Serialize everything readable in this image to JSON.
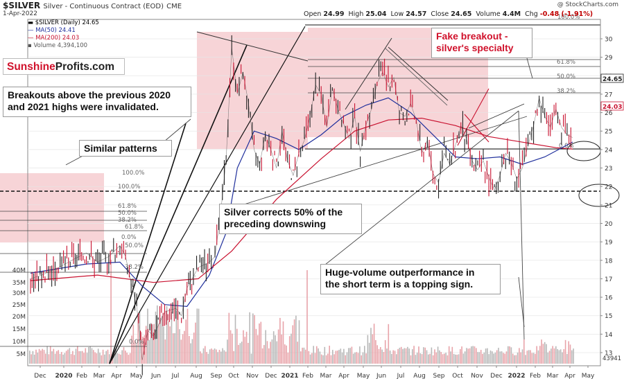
{
  "header": {
    "symbol": "$SILVER",
    "contract": "Silver - Continuous Contract (EOD)",
    "exchange": "CME",
    "date": "1-Apr-2022",
    "open_label": "Open",
    "open": "24.99",
    "high_label": "High",
    "high": "25.04",
    "low_label": "Low",
    "low": "24.57",
    "close_label": "Close",
    "close": "24.65",
    "volume_label": "Volume",
    "volume": "4.4M",
    "chg_label": "Chg",
    "chg": "-0.48 (-1.91%)",
    "credit": "@ StockCharts.com"
  },
  "legend": {
    "price": "$SILVER (Daily) 24.65",
    "ma50": "MA(50) 24.41",
    "ma200": "MA(200) 24.03",
    "volume": "Volume 4,394,100"
  },
  "logo": {
    "part1": "Sunshine",
    "part2": "Profits.com"
  },
  "annotations": {
    "fake_breakout_1": "Fake breakout -",
    "fake_breakout_2": "silver's specialty",
    "breakouts_1": "Breakouts above the previous 2020",
    "breakouts_2": "and 2021 highs were invalidated.",
    "similar": "Similar patterns",
    "corrects_1": "Silver corrects 50% of the",
    "corrects_2": "preceding downswing",
    "huge_1": "Huge-volume outperformance in",
    "huge_2": "the short term is a topping sign."
  },
  "colors": {
    "up": "#202020",
    "down": "#c8102e",
    "ma50": "#1f2f9c",
    "ma200": "#c8102e",
    "zone": "#f4c6c9",
    "volume_up": "#b8b8b8",
    "volume_down": "#e8a3a9",
    "accent_red": "#d0112b"
  },
  "chart_data": {
    "type": "line",
    "price_axis": {
      "ticks": [
        13,
        14,
        15,
        16,
        17,
        18,
        19,
        20,
        21,
        22,
        23,
        24,
        25,
        26,
        27,
        28,
        29,
        30
      ],
      "range": [
        12.4,
        30.6
      ]
    },
    "volume_axis": {
      "ticks": [
        "5M",
        "10M",
        "15M",
        "20M",
        "25M",
        "30M",
        "35M",
        "40M"
      ]
    },
    "x_ticks": [
      "Dec",
      "2020",
      "Feb",
      "Mar",
      "Apr",
      "May",
      "Jun",
      "Jul",
      "Aug",
      "Sep",
      "Oct",
      "Nov",
      "Dec",
      "2021",
      "Feb",
      "Mar",
      "Apr",
      "May",
      "Jun",
      "Jul",
      "Aug",
      "Sep",
      "Oct",
      "Nov",
      "Dec",
      "2022",
      "Feb",
      "Mar",
      "Apr",
      "May"
    ],
    "x_ticks_bold": [
      "2020",
      "2021",
      "2022"
    ],
    "price_labels": [
      {
        "text": "24.65",
        "color": "#202020"
      },
      {
        "text": "24.03",
        "color": "#c8102e"
      }
    ],
    "volume_last_label": "43941",
    "price_path": [
      {
        "t": 0,
        "y": 17.0
      },
      {
        "t": 2,
        "y": 17.2
      },
      {
        "t": 5,
        "y": 17.6
      },
      {
        "t": 8,
        "y": 18.1
      },
      {
        "t": 10,
        "y": 18.4
      },
      {
        "t": 12,
        "y": 17.9
      },
      {
        "t": 14,
        "y": 18.2
      },
      {
        "t": 16,
        "y": 18.8
      },
      {
        "t": 17,
        "y": 18.2
      },
      {
        "t": 18,
        "y": 16.8
      },
      {
        "t": 19,
        "y": 15.5
      },
      {
        "t": 20,
        "y": 12.6
      },
      {
        "t": 21,
        "y": 14.2
      },
      {
        "t": 22,
        "y": 13.9
      },
      {
        "t": 24,
        "y": 15.2
      },
      {
        "t": 26,
        "y": 15.4
      },
      {
        "t": 27,
        "y": 15.0
      },
      {
        "t": 28,
        "y": 16.5
      },
      {
        "t": 30,
        "y": 17.6
      },
      {
        "t": 32,
        "y": 17.9
      },
      {
        "t": 33,
        "y": 18.2
      },
      {
        "t": 34,
        "y": 20.5
      },
      {
        "t": 35,
        "y": 23.5
      },
      {
        "t": 36,
        "y": 29.5
      },
      {
        "t": 37,
        "y": 27.0
      },
      {
        "t": 38,
        "y": 28.2
      },
      {
        "t": 39,
        "y": 26.5
      },
      {
        "t": 40,
        "y": 24.0
      },
      {
        "t": 41,
        "y": 23.2
      },
      {
        "t": 42,
        "y": 24.8
      },
      {
        "t": 43,
        "y": 24.0
      },
      {
        "t": 44,
        "y": 23.0
      },
      {
        "t": 45,
        "y": 25.0
      },
      {
        "t": 46,
        "y": 23.4
      },
      {
        "t": 47,
        "y": 22.6
      },
      {
        "t": 48,
        "y": 23.8
      },
      {
        "t": 49,
        "y": 24.5
      },
      {
        "t": 50,
        "y": 25.8
      },
      {
        "t": 51,
        "y": 27.5
      },
      {
        "t": 52,
        "y": 27.0
      },
      {
        "t": 53,
        "y": 25.2
      },
      {
        "t": 54,
        "y": 27.3
      },
      {
        "t": 55,
        "y": 26.2
      },
      {
        "t": 56,
        "y": 25.4
      },
      {
        "t": 57,
        "y": 24.6
      },
      {
        "t": 58,
        "y": 25.8
      },
      {
        "t": 59,
        "y": 23.9
      },
      {
        "t": 60,
        "y": 25.3
      },
      {
        "t": 61,
        "y": 26.2
      },
      {
        "t": 62,
        "y": 27.6
      },
      {
        "t": 63,
        "y": 28.2
      },
      {
        "t": 64,
        "y": 27.4
      },
      {
        "t": 65,
        "y": 27.9
      },
      {
        "t": 66,
        "y": 26.0
      },
      {
        "t": 67,
        "y": 25.8
      },
      {
        "t": 68,
        "y": 26.5
      },
      {
        "t": 69,
        "y": 25.6
      },
      {
        "t": 70,
        "y": 23.8
      },
      {
        "t": 71,
        "y": 24.5
      },
      {
        "t": 72,
        "y": 22.7
      },
      {
        "t": 73,
        "y": 22.2
      },
      {
        "t": 74,
        "y": 23.8
      },
      {
        "t": 75,
        "y": 23.2
      },
      {
        "t": 76,
        "y": 24.2
      },
      {
        "t": 77,
        "y": 25.3
      },
      {
        "t": 78,
        "y": 24.6
      },
      {
        "t": 79,
        "y": 23.4
      },
      {
        "t": 80,
        "y": 22.9
      },
      {
        "t": 81,
        "y": 23.4
      },
      {
        "t": 82,
        "y": 22.5
      },
      {
        "t": 83,
        "y": 21.8
      },
      {
        "t": 84,
        "y": 22.6
      },
      {
        "t": 85,
        "y": 23.8
      },
      {
        "t": 86,
        "y": 23.3
      },
      {
        "t": 87,
        "y": 22.4
      },
      {
        "t": 88,
        "y": 23.0
      },
      {
        "t": 89,
        "y": 24.2
      },
      {
        "t": 90,
        "y": 25.3
      },
      {
        "t": 91,
        "y": 26.8
      },
      {
        "t": 92,
        "y": 25.8
      },
      {
        "t": 93,
        "y": 25.2
      },
      {
        "t": 94,
        "y": 26.2
      },
      {
        "t": 95,
        "y": 25.2
      },
      {
        "t": 96,
        "y": 24.8
      },
      {
        "t": 97,
        "y": 24.65
      }
    ],
    "ma50_path": [
      {
        "t": 0,
        "y": 17.3
      },
      {
        "t": 10,
        "y": 17.8
      },
      {
        "t": 16,
        "y": 17.9
      },
      {
        "t": 20,
        "y": 16.6
      },
      {
        "t": 24,
        "y": 15.6
      },
      {
        "t": 28,
        "y": 15.5
      },
      {
        "t": 32,
        "y": 17.2
      },
      {
        "t": 35,
        "y": 19.5
      },
      {
        "t": 37,
        "y": 23.0
      },
      {
        "t": 40,
        "y": 25.0
      },
      {
        "t": 44,
        "y": 24.6
      },
      {
        "t": 48,
        "y": 24.0
      },
      {
        "t": 52,
        "y": 24.8
      },
      {
        "t": 56,
        "y": 25.8
      },
      {
        "t": 60,
        "y": 26.4
      },
      {
        "t": 64,
        "y": 26.8
      },
      {
        "t": 68,
        "y": 26.0
      },
      {
        "t": 72,
        "y": 24.8
      },
      {
        "t": 76,
        "y": 23.6
      },
      {
        "t": 80,
        "y": 23.5
      },
      {
        "t": 84,
        "y": 23.6
      },
      {
        "t": 88,
        "y": 23.2
      },
      {
        "t": 92,
        "y": 23.6
      },
      {
        "t": 97,
        "y": 24.41
      }
    ],
    "ma200_path": [
      {
        "t": 0,
        "y": 16.9
      },
      {
        "t": 12,
        "y": 17.2
      },
      {
        "t": 22,
        "y": 16.8
      },
      {
        "t": 30,
        "y": 17.0
      },
      {
        "t": 36,
        "y": 18.5
      },
      {
        "t": 44,
        "y": 21.3
      },
      {
        "t": 52,
        "y": 23.5
      },
      {
        "t": 58,
        "y": 25.0
      },
      {
        "t": 64,
        "y": 25.6
      },
      {
        "t": 70,
        "y": 25.7
      },
      {
        "t": 76,
        "y": 25.3
      },
      {
        "t": 82,
        "y": 24.7
      },
      {
        "t": 88,
        "y": 24.4
      },
      {
        "t": 94,
        "y": 24.1
      },
      {
        "t": 97,
        "y": 24.03
      }
    ],
    "fib_levels": [
      {
        "text": "100.0%"
      },
      {
        "text": "61.8%"
      },
      {
        "text": "50.0%"
      },
      {
        "text": "38.2%"
      },
      {
        "text": "0.0%"
      },
      {
        "text": "100.0%"
      },
      {
        "text": "100.0%"
      },
      {
        "text": "61.8%"
      },
      {
        "text": "50.0%"
      },
      {
        "text": "38.2%"
      },
      {
        "text": "61.8%"
      },
      {
        "text": "0.0%"
      },
      {
        "text": "50.0%"
      },
      {
        "text": "38.2%"
      },
      {
        "text": "0.0%"
      }
    ]
  }
}
